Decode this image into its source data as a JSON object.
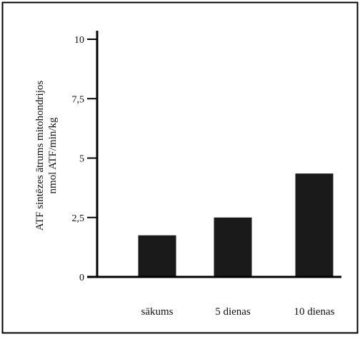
{
  "chart_data": {
    "type": "bar",
    "title": "",
    "xlabel": "",
    "ylabel_lines": [
      "ATF sintēzes ātrums mitohondrijos",
      "nmol ATF/min/kg"
    ],
    "categories": [
      "sākums",
      "5 dienas",
      "10 dienas"
    ],
    "values": [
      1.75,
      2.5,
      4.35
    ],
    "ylim": [
      0,
      10
    ],
    "yticks": [
      0,
      2.5,
      5,
      7.5,
      10
    ],
    "ytick_labels": [
      "0",
      "2,5",
      "5",
      "7,5",
      "10"
    ],
    "grid": false,
    "legend": "none",
    "colors": {
      "bar": "#1a1a1a",
      "axis": "#000000",
      "frame": "#000000"
    }
  }
}
